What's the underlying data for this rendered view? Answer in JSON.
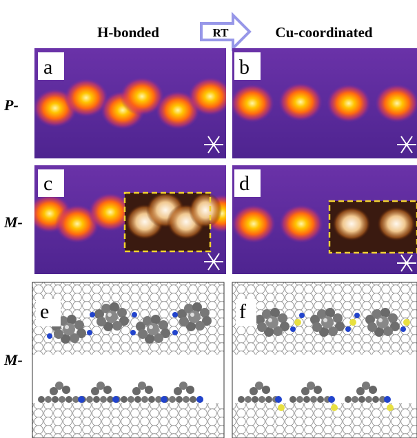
{
  "header": {
    "left": "H-bonded",
    "arrow": "RT",
    "right": "Cu-coordinated"
  },
  "rows": [
    "P-",
    "M-",
    "M-"
  ],
  "panels": [
    "a",
    "b",
    "c",
    "d",
    "e",
    "f"
  ]
}
